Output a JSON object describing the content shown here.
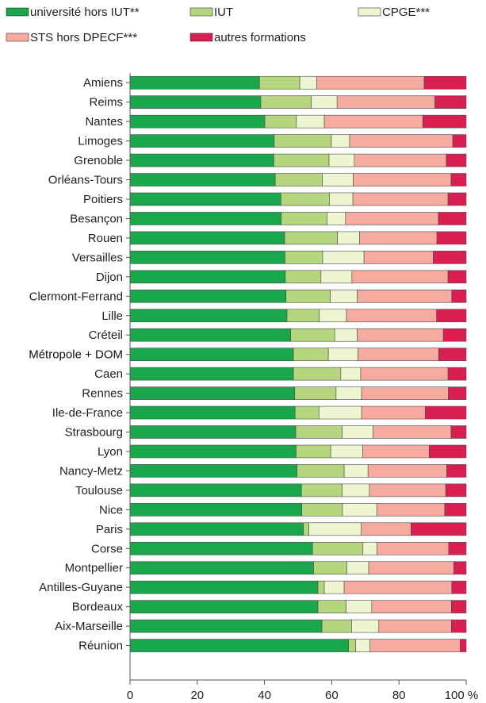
{
  "chart_data": {
    "type": "bar",
    "stacked": true,
    "orientation": "horizontal",
    "legend_position": "top",
    "xlim": [
      0,
      100
    ],
    "x_ticks": [
      "0",
      "20",
      "40",
      "60",
      "80",
      "100 %"
    ],
    "categories": [
      "Amiens",
      "Reims",
      "Nantes",
      "Limoges",
      "Grenoble",
      "Orléans-Tours",
      "Poitiers",
      "Besançon",
      "Rouen",
      "Versailles",
      "Dijon",
      "Clermont-Ferrand",
      "Lille",
      "Créteil",
      "Métropole + DOM",
      "Caen",
      "Rennes",
      "Ile-de-France",
      "Strasbourg",
      "Lyon",
      "Nancy-Metz",
      "Toulouse",
      "Nice",
      "Paris",
      "Corse",
      "Montpellier",
      "Antilles-Guyane",
      "Bordeaux",
      "Aix-Marseille",
      "Réunion"
    ],
    "highlight_category": "Métropole + DOM",
    "series": [
      {
        "name": "université hors IUT**",
        "color": "#1aa64b",
        "values": [
          38.5,
          38.9,
          40.1,
          42.9,
          42.8,
          43.2,
          44.9,
          45.0,
          46.0,
          46.1,
          46.2,
          46.4,
          46.7,
          47.8,
          48.6,
          48.6,
          49.0,
          49.1,
          49.3,
          49.4,
          49.7,
          51.0,
          51.1,
          51.6,
          54.3,
          54.6,
          55.9,
          55.9,
          57.1,
          65.0
        ]
      },
      {
        "name": "IUT",
        "color": "#b5d67e",
        "values": [
          12.0,
          15.0,
          9.4,
          17.0,
          16.4,
          14.0,
          14.4,
          13.6,
          15.7,
          11.2,
          10.6,
          13.2,
          9.6,
          13.1,
          10.4,
          14.1,
          12.3,
          7.1,
          13.8,
          10.3,
          14.0,
          12.1,
          12.1,
          1.6,
          15.0,
          9.9,
          1.9,
          8.4,
          8.8,
          2.1
        ]
      },
      {
        "name": "CPGE***",
        "color": "#eef5d2",
        "values": [
          5.0,
          7.7,
          8.3,
          5.4,
          7.5,
          9.2,
          7.0,
          5.5,
          6.6,
          12.3,
          9.2,
          8.0,
          8.1,
          6.7,
          8.8,
          5.9,
          7.6,
          12.7,
          9.2,
          9.5,
          7.1,
          8.1,
          10.2,
          15.6,
          4.2,
          6.5,
          5.9,
          7.6,
          8.1,
          4.3
        ]
      },
      {
        "name": "STS hors DPECF***",
        "color": "#f7aba0",
        "values": [
          32.0,
          29.1,
          29.3,
          30.7,
          27.4,
          29.1,
          28.3,
          27.6,
          23.0,
          20.6,
          28.6,
          28.1,
          26.8,
          25.6,
          24.0,
          26.0,
          25.8,
          18.9,
          23.2,
          19.8,
          23.4,
          22.7,
          20.2,
          14.8,
          21.3,
          25.3,
          32.0,
          23.7,
          21.6,
          26.8
        ]
      },
      {
        "name": "autres formations",
        "color": "#d91f52",
        "values": [
          12.5,
          9.3,
          12.9,
          4.0,
          5.9,
          4.5,
          5.4,
          8.3,
          8.7,
          9.8,
          5.4,
          4.3,
          8.8,
          6.8,
          8.2,
          5.4,
          5.3,
          12.2,
          4.5,
          11.0,
          5.8,
          6.1,
          6.4,
          16.4,
          5.2,
          3.7,
          4.3,
          4.4,
          4.4,
          1.8
        ]
      }
    ]
  }
}
